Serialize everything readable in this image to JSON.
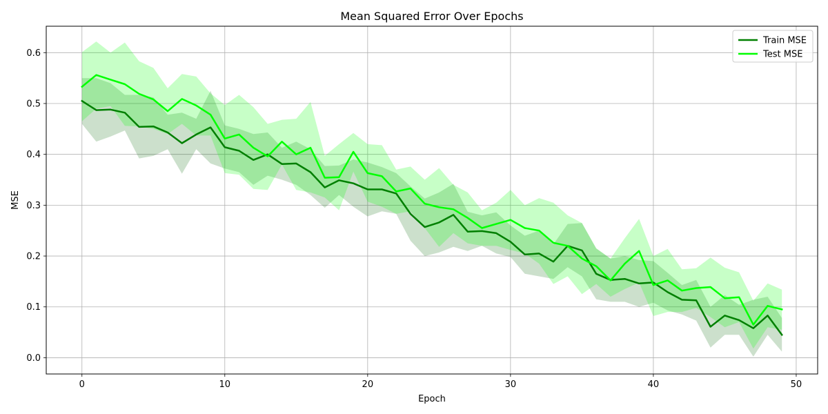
{
  "chart_data": {
    "type": "line",
    "title": "Mean Squared Error Over Epochs",
    "xlabel": "Epoch",
    "ylabel": "MSE",
    "xlim": [
      -2.5,
      51.5
    ],
    "ylim": [
      -0.032,
      0.652
    ],
    "xticks": [
      0,
      10,
      20,
      30,
      40,
      50
    ],
    "yticks": [
      0.0,
      0.1,
      0.2,
      0.3,
      0.4,
      0.5,
      0.6
    ],
    "ytick_labels": [
      "0.0",
      "0.1",
      "0.2",
      "0.3",
      "0.4",
      "0.5",
      "0.6"
    ],
    "grid": true,
    "legend_position": "top-right",
    "x": [
      0,
      1,
      2,
      3,
      4,
      5,
      6,
      7,
      8,
      9,
      10,
      11,
      12,
      13,
      14,
      15,
      16,
      17,
      18,
      19,
      20,
      21,
      22,
      23,
      24,
      25,
      26,
      27,
      28,
      29,
      30,
      31,
      32,
      33,
      34,
      35,
      36,
      37,
      38,
      39,
      40,
      41,
      42,
      43,
      44,
      45,
      46,
      47,
      48,
      49
    ],
    "series": [
      {
        "name": "Train MSE",
        "color": "#007f00",
        "band_color": "#006400",
        "values": [
          0.505,
          0.487,
          0.488,
          0.482,
          0.454,
          0.455,
          0.443,
          0.422,
          0.439,
          0.453,
          0.414,
          0.407,
          0.389,
          0.4,
          0.381,
          0.382,
          0.365,
          0.335,
          0.349,
          0.343,
          0.331,
          0.331,
          0.323,
          0.283,
          0.257,
          0.266,
          0.281,
          0.248,
          0.249,
          0.245,
          0.228,
          0.203,
          0.205,
          0.189,
          0.22,
          0.211,
          0.165,
          0.153,
          0.155,
          0.146,
          0.148,
          0.129,
          0.114,
          0.113,
          0.061,
          0.083,
          0.074,
          0.058,
          0.083,
          0.045
        ],
        "lower": [
          0.46,
          0.425,
          0.435,
          0.447,
          0.392,
          0.397,
          0.41,
          0.362,
          0.41,
          0.382,
          0.372,
          0.365,
          0.34,
          0.358,
          0.35,
          0.34,
          0.32,
          0.295,
          0.32,
          0.297,
          0.278,
          0.288,
          0.283,
          0.23,
          0.2,
          0.207,
          0.218,
          0.21,
          0.22,
          0.205,
          0.198,
          0.165,
          0.16,
          0.155,
          0.178,
          0.16,
          0.115,
          0.11,
          0.11,
          0.1,
          0.108,
          0.093,
          0.085,
          0.073,
          0.02,
          0.045,
          0.045,
          0.002,
          0.045,
          0.012
        ],
        "upper": [
          0.55,
          0.55,
          0.54,
          0.517,
          0.517,
          0.512,
          0.478,
          0.482,
          0.47,
          0.525,
          0.457,
          0.45,
          0.44,
          0.443,
          0.413,
          0.425,
          0.41,
          0.377,
          0.378,
          0.39,
          0.384,
          0.375,
          0.363,
          0.337,
          0.313,
          0.325,
          0.342,
          0.287,
          0.28,
          0.286,
          0.26,
          0.24,
          0.25,
          0.223,
          0.263,
          0.265,
          0.215,
          0.195,
          0.2,
          0.192,
          0.19,
          0.167,
          0.143,
          0.153,
          0.1,
          0.123,
          0.104,
          0.114,
          0.12,
          0.078
        ]
      },
      {
        "name": "Test MSE",
        "color": "#00ff00",
        "band_color": "#00ff00",
        "values": [
          0.533,
          0.556,
          0.547,
          0.538,
          0.519,
          0.508,
          0.485,
          0.509,
          0.496,
          0.478,
          0.431,
          0.439,
          0.413,
          0.396,
          0.425,
          0.4,
          0.413,
          0.354,
          0.355,
          0.405,
          0.363,
          0.357,
          0.327,
          0.333,
          0.303,
          0.296,
          0.292,
          0.275,
          0.255,
          0.263,
          0.271,
          0.255,
          0.25,
          0.226,
          0.22,
          0.195,
          0.18,
          0.152,
          0.185,
          0.21,
          0.143,
          0.152,
          0.132,
          0.137,
          0.139,
          0.117,
          0.119,
          0.065,
          0.102,
          0.095
        ],
        "lower": [
          0.465,
          0.49,
          0.495,
          0.456,
          0.455,
          0.45,
          0.44,
          0.46,
          0.437,
          0.437,
          0.363,
          0.36,
          0.332,
          0.33,
          0.38,
          0.33,
          0.325,
          0.315,
          0.29,
          0.366,
          0.307,
          0.297,
          0.283,
          0.288,
          0.255,
          0.218,
          0.245,
          0.225,
          0.22,
          0.22,
          0.212,
          0.205,
          0.185,
          0.145,
          0.16,
          0.125,
          0.145,
          0.12,
          0.135,
          0.148,
          0.082,
          0.09,
          0.09,
          0.098,
          0.08,
          0.06,
          0.07,
          0.018,
          0.06,
          0.055
        ],
        "upper": [
          0.601,
          0.622,
          0.6,
          0.62,
          0.583,
          0.57,
          0.53,
          0.558,
          0.553,
          0.52,
          0.497,
          0.517,
          0.493,
          0.46,
          0.468,
          0.47,
          0.503,
          0.397,
          0.42,
          0.442,
          0.42,
          0.418,
          0.37,
          0.376,
          0.35,
          0.373,
          0.34,
          0.325,
          0.29,
          0.305,
          0.33,
          0.3,
          0.314,
          0.305,
          0.28,
          0.265,
          0.215,
          0.195,
          0.235,
          0.273,
          0.2,
          0.214,
          0.174,
          0.176,
          0.197,
          0.177,
          0.168,
          0.112,
          0.146,
          0.134
        ]
      }
    ]
  }
}
